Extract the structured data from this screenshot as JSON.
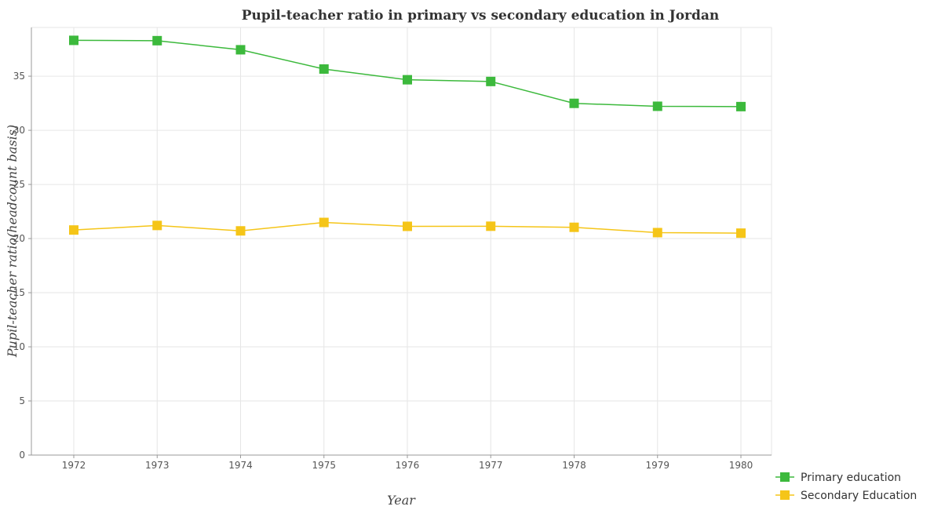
{
  "chart_data": {
    "type": "line",
    "title": "Pupil-teacher ratio in primary vs secondary education in Jordan",
    "xlabel": "Year",
    "ylabel": "Pupil-teacher ratio(headcount basis)",
    "x": [
      "1972",
      "1973",
      "1974",
      "1975",
      "1976",
      "1977",
      "1978",
      "1979",
      "1980"
    ],
    "ylim": [
      0,
      39.5
    ],
    "yticks": [
      0,
      5,
      10,
      15,
      20,
      25,
      30,
      35
    ],
    "grid": true,
    "legend_position": "bottom-right",
    "series": [
      {
        "name": "Primary education",
        "color": "#3cb93c",
        "values": [
          38.31,
          38.28,
          37.44,
          35.66,
          34.67,
          34.51,
          32.49,
          32.22,
          32.19
        ]
      },
      {
        "name": "Secondary Education",
        "color": "#f5c518",
        "values": [
          20.79,
          21.21,
          20.71,
          21.49,
          21.13,
          21.14,
          21.04,
          20.55,
          20.5
        ]
      }
    ]
  }
}
